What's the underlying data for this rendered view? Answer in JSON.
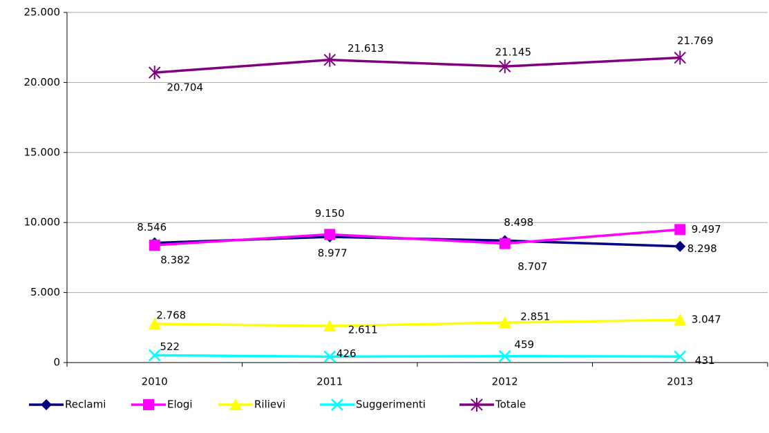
{
  "chart_data": {
    "type": "line",
    "categories": [
      "2010",
      "2011",
      "2012",
      "2013"
    ],
    "series": [
      {
        "name": "Reclami",
        "color": "#000080",
        "marker": "diamond",
        "values": [
          8546,
          8977,
          8707,
          8298
        ],
        "value_labels": [
          "8.546",
          "8.977",
          "8.707",
          "8.298"
        ]
      },
      {
        "name": "Elogi",
        "color": "#ff00ff",
        "marker": "square",
        "values": [
          8382,
          9150,
          8498,
          9497
        ],
        "value_labels": [
          "8.382",
          "9.150",
          "8.498",
          "9.497"
        ]
      },
      {
        "name": "Rilievi",
        "color": "#ffff00",
        "marker": "triangle",
        "values": [
          2768,
          2611,
          2851,
          3047
        ],
        "value_labels": [
          "2.768",
          "2.611",
          "2.851",
          "3.047"
        ]
      },
      {
        "name": "Suggerimenti",
        "color": "#00ffff",
        "marker": "x",
        "values": [
          522,
          426,
          459,
          431
        ],
        "value_labels": [
          "522",
          "426",
          "459",
          "431"
        ]
      },
      {
        "name": "Totale",
        "color": "#800080",
        "marker": "asterisk",
        "values": [
          20704,
          21613,
          21145,
          21769
        ],
        "value_labels": [
          "20.704",
          "21.613",
          "21.145",
          "21.769"
        ]
      }
    ],
    "ylim": [
      0,
      25000
    ],
    "yticks": [
      0,
      {
        "value": 5000,
        "label": "5.000"
      },
      {
        "value": 10000,
        "label": "10.000"
      },
      {
        "value": 15000,
        "label": "15.000"
      },
      {
        "value": 20000,
        "label": "20.000"
      },
      {
        "value": 25000,
        "label": "25.000"
      }
    ],
    "grid": true,
    "legend": "bottom"
  }
}
